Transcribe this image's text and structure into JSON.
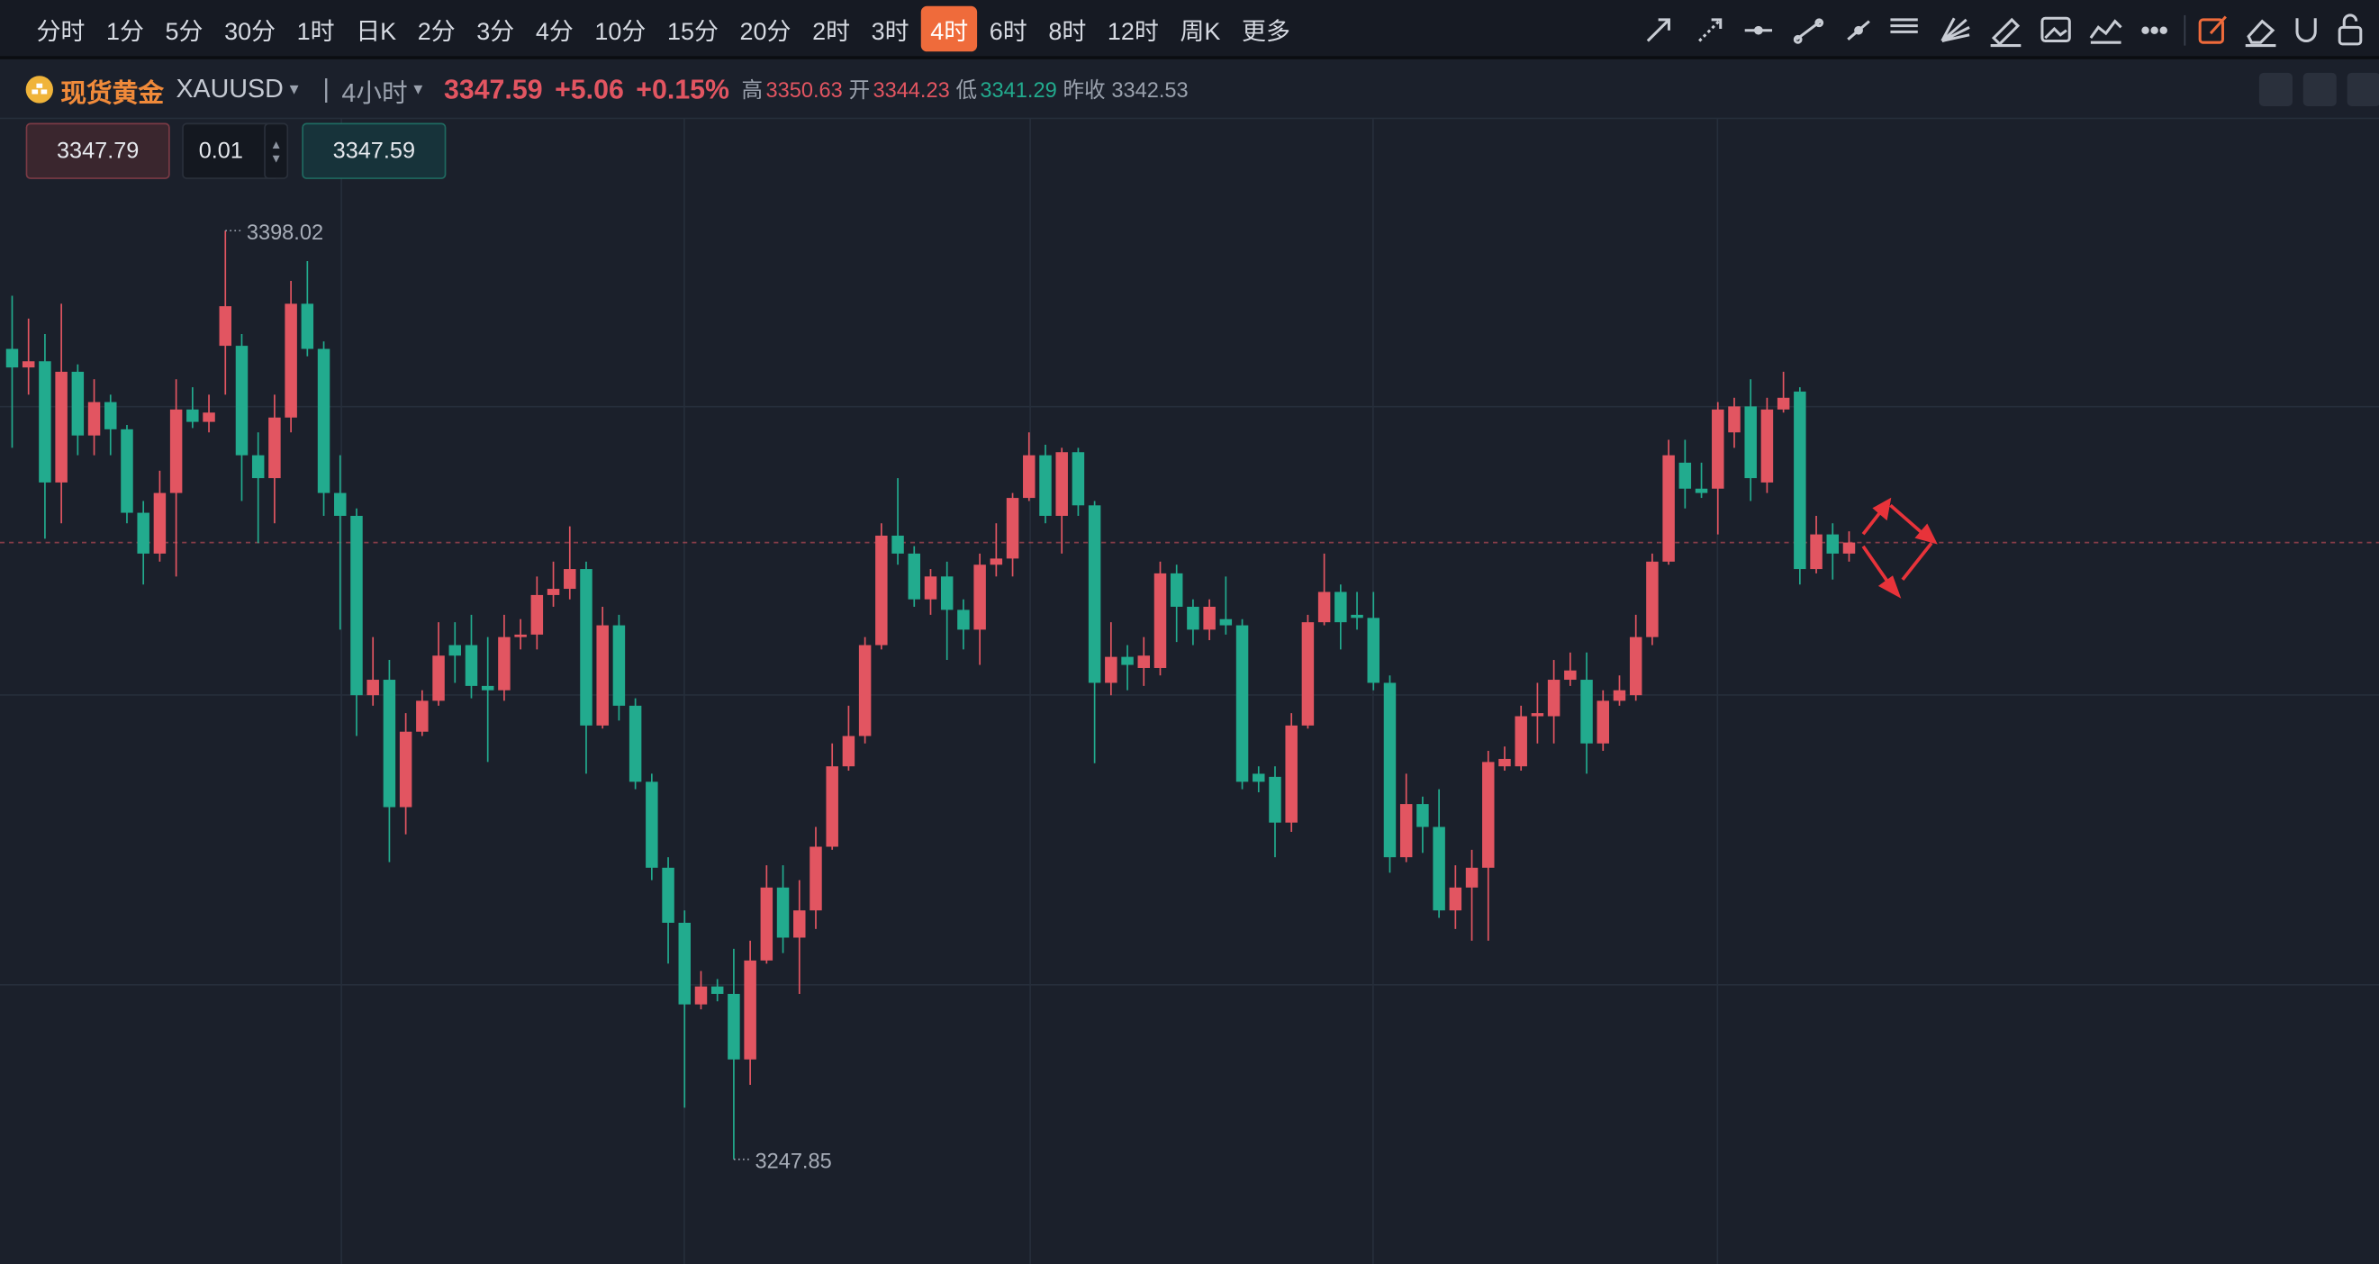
{
  "toolbar": {
    "periods": [
      "分时",
      "1分",
      "5分",
      "30分",
      "1时",
      "日K",
      "2分",
      "3分",
      "4分",
      "10分",
      "15分",
      "20分",
      "2时",
      "3时",
      "4时",
      "6时",
      "8时",
      "12时",
      "周K",
      "更多"
    ],
    "active": 14
  },
  "quote": {
    "name": "现货黄金",
    "symbol": "XAUUSD",
    "timeframe": "4小时",
    "price": 3347.59,
    "change": "+5.06",
    "change_pct": "+0.15%",
    "high_label": "高",
    "high": 3350.63,
    "open_label": "开",
    "open": 3344.23,
    "low_label": "低",
    "low": 3341.29,
    "prev_close_label": "昨收",
    "prev_close": 3342.53
  },
  "order": {
    "sell": 3347.79,
    "lots": 0.01,
    "buy": 3347.59
  },
  "chart_data": {
    "type": "candlestick",
    "up_color": "#e25561",
    "down_color": "#22ab8e",
    "open": [
      3378.9,
      3375.9,
      3376.9,
      3357.3,
      3375.2,
      3364.9,
      3370.3,
      3365.9,
      3352.4,
      3345.8,
      3355.6,
      3369.1,
      3367.1,
      3379.4,
      3379.4,
      3361.7,
      3358.0,
      3367.8,
      3386.2,
      3378.9,
      3355.6,
      3351.9,
      3322.9,
      3325.4,
      3304.8,
      3317.0,
      3322.0,
      3331.0,
      3331.0,
      3324.4,
      3323.7,
      3332.3,
      3332.7,
      3339.1,
      3340.1,
      3343.3,
      3318.0,
      3334.2,
      3321.2,
      3308.9,
      3295.0,
      3286.1,
      3272.9,
      3275.8,
      3274.6,
      3264.0,
      3280.0,
      3291.8,
      3283.7,
      3288.1,
      3298.4,
      3311.4,
      3316.3,
      3331.0,
      3348.7,
      3345.8,
      3338.4,
      3342.1,
      3336.7,
      3333.5,
      3344.0,
      3345.0,
      3354.8,
      3361.7,
      3351.9,
      3362.2,
      3353.6,
      3324.9,
      3329.1,
      3327.3,
      3327.3,
      3342.6,
      3337.2,
      3333.5,
      3335.2,
      3334.2,
      3310.2,
      3309.7,
      3302.3,
      3318.0,
      3334.7,
      3339.6,
      3335.9,
      3335.4,
      3324.9,
      3296.7,
      3305.3,
      3301.6,
      3288.1,
      3291.8,
      3295.0,
      3311.4,
      3311.4,
      3319.5,
      3319.5,
      3325.4,
      3325.4,
      3315.1,
      3322.0,
      3322.9,
      3332.3,
      3344.5,
      3360.5,
      3356.3,
      3356.3,
      3365.4,
      3369.6,
      3357.3,
      3369.1,
      3372.0,
      3343.3,
      3348.9,
      3345.8
    ],
    "high": [
      3387.5,
      3383.8,
      3381.3,
      3386.2,
      3376.4,
      3374.0,
      3371.5,
      3366.6,
      3354.3,
      3359.2,
      3374.0,
      3372.7,
      3371.5,
      3398.02,
      3381.3,
      3365.4,
      3371.5,
      3389.9,
      3393.1,
      3380.1,
      3361.7,
      3353.1,
      3332.3,
      3328.6,
      3320.0,
      3323.7,
      3334.7,
      3334.7,
      3335.9,
      3332.3,
      3335.9,
      3335.2,
      3342.1,
      3344.5,
      3350.2,
      3344.5,
      3337.2,
      3335.9,
      3322.4,
      3310.2,
      3296.7,
      3288.1,
      3278.3,
      3277.0,
      3281.9,
      3283.2,
      3295.4,
      3295.4,
      3293.0,
      3301.6,
      3315.1,
      3321.2,
      3332.3,
      3350.7,
      3358.0,
      3347.0,
      3343.3,
      3344.5,
      3338.4,
      3345.8,
      3350.7,
      3355.6,
      3365.4,
      3363.4,
      3362.9,
      3362.9,
      3354.3,
      3334.7,
      3331.0,
      3332.3,
      3344.5,
      3344.0,
      3338.4,
      3338.4,
      3342.1,
      3335.2,
      3311.4,
      3311.4,
      3320.0,
      3335.9,
      3345.8,
      3340.8,
      3339.6,
      3339.6,
      3326.1,
      3310.2,
      3306.5,
      3307.7,
      3295.4,
      3297.9,
      3313.9,
      3314.6,
      3321.2,
      3324.9,
      3328.6,
      3329.8,
      3329.8,
      3323.7,
      3326.1,
      3335.9,
      3345.8,
      3364.2,
      3364.2,
      3360.5,
      3370.3,
      3371.0,
      3374.0,
      3371.0,
      3375.2,
      3372.7,
      3351.9,
      3350.7,
      3349.4
    ],
    "low": [
      3362.9,
      3371.5,
      3348.2,
      3350.7,
      3361.7,
      3361.7,
      3361.7,
      3350.7,
      3340.8,
      3344.5,
      3342.1,
      3366.1,
      3365.4,
      3371.5,
      3354.3,
      3347.5,
      3350.7,
      3365.4,
      3377.7,
      3351.9,
      3333.5,
      3316.3,
      3321.2,
      3295.9,
      3300.4,
      3316.3,
      3321.2,
      3324.9,
      3322.4,
      3312.1,
      3322.0,
      3330.3,
      3330.3,
      3337.2,
      3338.4,
      3310.2,
      3317.5,
      3318.8,
      3307.7,
      3293.0,
      3279.5,
      3256.2,
      3272.1,
      3273.4,
      3247.85,
      3259.9,
      3279.5,
      3281.2,
      3274.6,
      3285.1,
      3297.9,
      3310.7,
      3315.1,
      3330.3,
      3344.0,
      3337.2,
      3335.9,
      3328.6,
      3330.3,
      3327.8,
      3342.1,
      3342.1,
      3354.3,
      3350.7,
      3345.8,
      3351.9,
      3311.9,
      3322.9,
      3323.7,
      3324.4,
      3326.1,
      3331.5,
      3331.0,
      3331.8,
      3332.7,
      3307.7,
      3307.2,
      3296.7,
      3300.8,
      3317.5,
      3334.2,
      3330.3,
      3333.5,
      3323.7,
      3294.2,
      3295.9,
      3297.4,
      3286.9,
      3285.1,
      3283.2,
      3283.2,
      3310.7,
      3310.7,
      3315.1,
      3315.1,
      3324.4,
      3310.2,
      3313.9,
      3321.2,
      3322.0,
      3331.0,
      3344.0,
      3353.1,
      3354.8,
      3348.9,
      3362.9,
      3354.3,
      3355.6,
      3368.6,
      3340.8,
      3342.6,
      3341.6,
      3344.5
    ],
    "close": [
      3375.9,
      3376.9,
      3357.3,
      3375.2,
      3364.9,
      3370.3,
      3365.9,
      3352.4,
      3345.8,
      3355.6,
      3369.1,
      3367.1,
      3368.6,
      3385.8,
      3361.7,
      3358.0,
      3367.8,
      3386.2,
      3378.9,
      3355.6,
      3351.9,
      3322.9,
      3325.4,
      3304.8,
      3317.0,
      3322.0,
      3329.3,
      3329.3,
      3324.4,
      3323.7,
      3332.3,
      3332.7,
      3339.1,
      3340.1,
      3343.3,
      3318.0,
      3334.2,
      3321.2,
      3308.9,
      3295.0,
      3286.1,
      3272.9,
      3275.8,
      3274.6,
      3264.0,
      3280.0,
      3291.8,
      3283.7,
      3288.1,
      3298.4,
      3311.4,
      3316.3,
      3331.0,
      3348.7,
      3345.8,
      3338.4,
      3342.1,
      3336.7,
      3333.5,
      3344.0,
      3345.0,
      3354.8,
      3361.7,
      3351.9,
      3362.2,
      3353.6,
      3324.9,
      3329.1,
      3327.8,
      3329.3,
      3342.6,
      3337.2,
      3333.5,
      3337.2,
      3334.2,
      3308.9,
      3308.9,
      3302.3,
      3318.0,
      3334.7,
      3339.6,
      3334.7,
      3335.4,
      3324.9,
      3296.7,
      3305.3,
      3301.6,
      3288.1,
      3291.8,
      3295.0,
      3312.1,
      3312.6,
      3319.5,
      3320.0,
      3325.4,
      3326.9,
      3315.1,
      3322.0,
      3323.7,
      3332.3,
      3344.5,
      3361.7,
      3356.3,
      3355.6,
      3369.1,
      3369.6,
      3358.0,
      3369.1,
      3371.0,
      3343.3,
      3348.9,
      3345.8,
      3347.59
    ]
  }
}
